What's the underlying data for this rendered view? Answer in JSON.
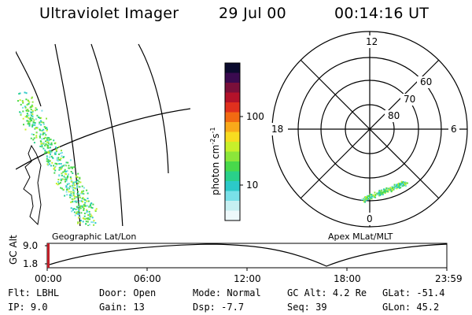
{
  "header": {
    "instrument": "Ultraviolet Imager",
    "date": "29 Jul 00",
    "time": "00:14:16 UT"
  },
  "colorbar": {
    "label_main": "photon cm",
    "label_sup1": "-2",
    "label_mid": "s",
    "label_sup2": "-1",
    "ticks": [
      "100",
      "10"
    ],
    "colors": [
      "#0b0b2e",
      "#3a0a4f",
      "#7a0f3a",
      "#b3122a",
      "#e0301e",
      "#f26a12",
      "#f9a91a",
      "#f7dc20",
      "#c8ef2a",
      "#8be63a",
      "#48d94b",
      "#2ad08a",
      "#2cc9c9",
      "#79e0e8",
      "#c6f0f2",
      "#eef9fb"
    ]
  },
  "map": {
    "left_label": "Geographic Lat/Lon",
    "right_label": "Apex MLat/MLT"
  },
  "polar": {
    "mlt_labels": {
      "top": "12",
      "left": "18",
      "right": "6",
      "bottom": "0"
    },
    "lat_labels": [
      "60",
      "70",
      "80"
    ]
  },
  "timeline": {
    "axis_label": "GC Alt",
    "y_top": "9.0",
    "y_bottom": "1.8",
    "ticks": [
      "00:00",
      "06:00",
      "12:00",
      "18:00",
      "23:59"
    ]
  },
  "info": {
    "row1": [
      {
        "label": "Flt:",
        "value": "LBHL"
      },
      {
        "label": "Door:",
        "value": "Open"
      },
      {
        "label": "Mode:",
        "value": "Normal"
      },
      {
        "label": "GC Alt:",
        "value": "4.2 Re"
      },
      {
        "label": "GLat:",
        "value": "-51.4"
      }
    ],
    "row2": [
      {
        "label": "IP:",
        "value": "9.0"
      },
      {
        "label": "Gain:",
        "value": "13"
      },
      {
        "label": "Dsp:",
        "value": "-7.7"
      },
      {
        "label": "Seq:",
        "value": "39"
      },
      {
        "label": "GLon:",
        "value": "45.2"
      }
    ]
  }
}
